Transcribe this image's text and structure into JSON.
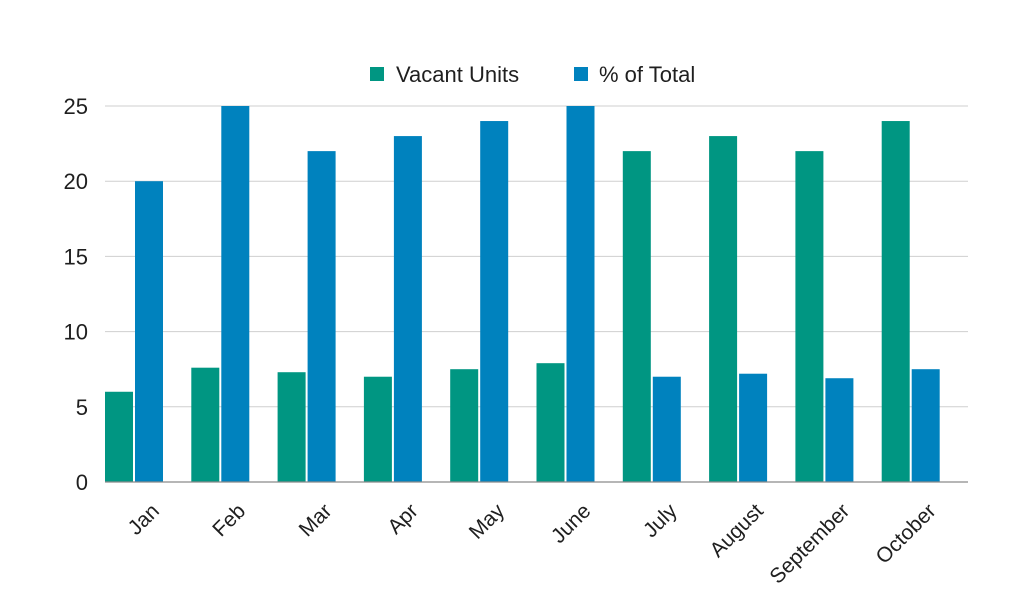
{
  "chart_data": {
    "type": "bar",
    "categories": [
      "Jan",
      "Feb",
      "Mar",
      "Apr",
      "May",
      "June",
      "July",
      "August",
      "September",
      "October"
    ],
    "series": [
      {
        "name": "Vacant Units",
        "color": "#009682",
        "values": [
          6,
          7.6,
          7.3,
          7,
          7.5,
          7.9,
          22,
          23,
          22,
          24
        ]
      },
      {
        "name": "% of Total",
        "color": "#0082BE",
        "values": [
          20,
          25,
          22,
          23,
          24,
          25,
          7,
          7.2,
          6.9,
          7.5
        ]
      }
    ],
    "ylim": [
      0,
      25
    ],
    "yticks": [
      0,
      5,
      10,
      15,
      20,
      25
    ],
    "grid": true,
    "legend_position": "top-center",
    "title": "",
    "xlabel": "",
    "ylabel": ""
  }
}
